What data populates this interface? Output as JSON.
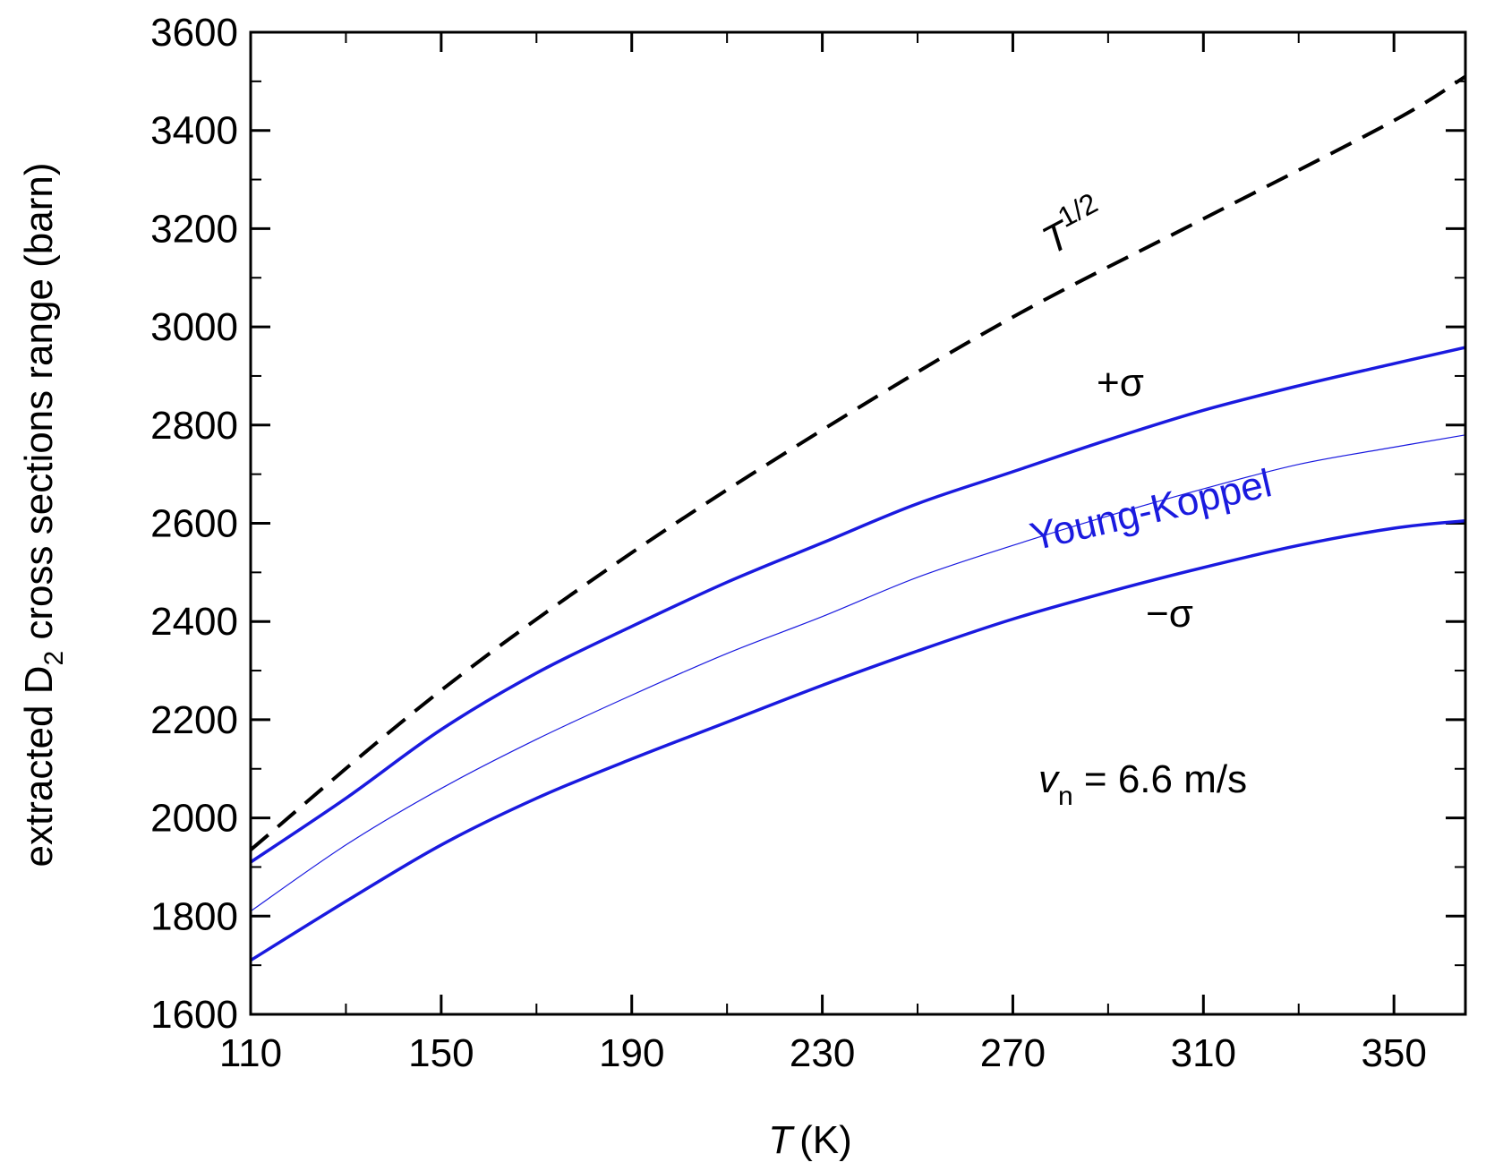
{
  "chart_data": {
    "type": "line",
    "title": "",
    "xlabel_var": "T",
    "xlabel_unit": "(K)",
    "ylabel_pre": "extracted D",
    "ylabel_sub": "2",
    "ylabel_post": " cross sections range (barn)",
    "xlim": [
      110,
      365
    ],
    "ylim": [
      1600,
      3600
    ],
    "xticks": [
      110,
      150,
      190,
      230,
      270,
      310,
      350
    ],
    "yticks": [
      1600,
      1800,
      2000,
      2200,
      2400,
      2600,
      2800,
      3000,
      3200,
      3400,
      3600
    ],
    "x_minor_step": 20,
    "y_minor_step": 100,
    "grid": false,
    "series": [
      {
        "name": "T^1/2",
        "style": "dashed",
        "color": "#000000",
        "x": [
          110,
          150,
          190,
          230,
          270,
          310,
          350,
          365
        ],
        "y": [
          1935,
          2260,
          2540,
          2790,
          3020,
          3220,
          3420,
          3510
        ]
      },
      {
        "name": "+σ",
        "style": "solid",
        "color": "#1a1adf",
        "x": [
          110,
          130,
          150,
          170,
          190,
          210,
          230,
          250,
          270,
          290,
          310,
          330,
          350,
          365
        ],
        "y": [
          1910,
          2040,
          2180,
          2295,
          2390,
          2480,
          2560,
          2640,
          2705,
          2770,
          2830,
          2880,
          2925,
          2958
        ]
      },
      {
        "name": "Young-Koppel",
        "style": "thin",
        "color": "#1a1adf",
        "x": [
          110,
          130,
          150,
          170,
          190,
          210,
          230,
          250,
          270,
          290,
          310,
          330,
          350,
          365
        ],
        "y": [
          1810,
          1945,
          2060,
          2160,
          2250,
          2335,
          2410,
          2490,
          2555,
          2615,
          2670,
          2720,
          2755,
          2780
        ]
      },
      {
        "name": "−σ",
        "style": "solid",
        "color": "#1a1adf",
        "x": [
          110,
          130,
          150,
          170,
          190,
          210,
          230,
          250,
          270,
          290,
          310,
          330,
          350,
          365
        ],
        "y": [
          1710,
          1830,
          1945,
          2040,
          2120,
          2195,
          2270,
          2340,
          2405,
          2460,
          2510,
          2555,
          2590,
          2605
        ]
      }
    ],
    "annotations": {
      "sqrt_base": "T",
      "sqrt_exp": "1/2",
      "plus_sigma": "+σ",
      "minus_sigma": "−σ",
      "young_koppel": "Young-Koppel",
      "vn_var": "v",
      "vn_sub": "n",
      "vn_rest": " = 6.6 m/s"
    }
  }
}
